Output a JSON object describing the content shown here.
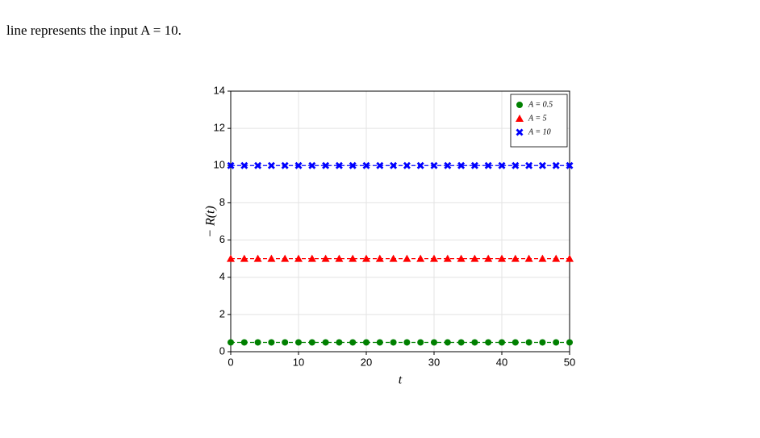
{
  "text": {
    "line": "line represents the input A = 10."
  },
  "chart_data": {
    "type": "line",
    "x_label": "t",
    "y_label": "− R(t)",
    "x": [
      0,
      2,
      4,
      6,
      8,
      10,
      12,
      14,
      16,
      18,
      20,
      22,
      24,
      26,
      28,
      30,
      32,
      34,
      36,
      38,
      40,
      42,
      44,
      46,
      48,
      50
    ],
    "series": [
      {
        "name": "A = 0.5",
        "color": "#008000",
        "marker": "circle",
        "values": [
          0.5,
          0.5,
          0.5,
          0.5,
          0.5,
          0.5,
          0.5,
          0.5,
          0.5,
          0.5,
          0.5,
          0.5,
          0.5,
          0.5,
          0.5,
          0.5,
          0.5,
          0.5,
          0.5,
          0.5,
          0.5,
          0.5,
          0.5,
          0.5,
          0.5,
          0.5
        ]
      },
      {
        "name": "A = 5",
        "color": "#ff0000",
        "marker": "triangle",
        "values": [
          5,
          5,
          5,
          5,
          5,
          5,
          5,
          5,
          5,
          5,
          5,
          5,
          5,
          5,
          5,
          5,
          5,
          5,
          5,
          5,
          5,
          5,
          5,
          5,
          5,
          5
        ]
      },
      {
        "name": "A = 10",
        "color": "#0000ff",
        "marker": "cross",
        "values": [
          10,
          10,
          10,
          10,
          10,
          10,
          10,
          10,
          10,
          10,
          10,
          10,
          10,
          10,
          10,
          10,
          10,
          10,
          10,
          10,
          10,
          10,
          10,
          10,
          10,
          10
        ]
      }
    ],
    "xlim": [
      0,
      50
    ],
    "ylim": [
      0,
      14
    ],
    "xticks": [
      0,
      10,
      20,
      30,
      40,
      50
    ],
    "yticks": [
      0,
      2,
      4,
      6,
      8,
      10,
      12,
      14
    ],
    "grid": true,
    "legend": "upper right",
    "line_style": "dashed"
  }
}
